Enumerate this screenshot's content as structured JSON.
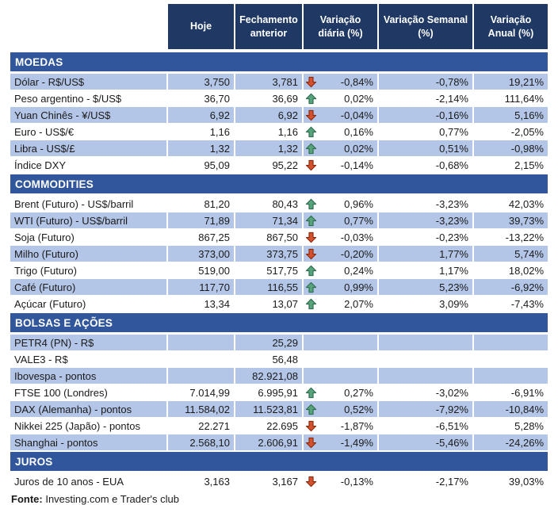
{
  "table": {
    "columns": [
      "Hoje",
      "Fechamento anterior",
      "Variação diária (%)",
      "Variação Semanal (%)",
      "Variação Anual (%)"
    ],
    "sections": [
      {
        "title": "MOEDAS",
        "rows": [
          {
            "label": "Dólar - R$/US$",
            "hoje": "3,750",
            "fechamento": "3,781",
            "arrow": "down",
            "diaria": "-0,84%",
            "semanal": "-0,78%",
            "anual": "19,21%"
          },
          {
            "label": "Peso argentino - $/US$",
            "hoje": "36,70",
            "fechamento": "36,69",
            "arrow": "up",
            "diaria": "0,02%",
            "semanal": "-2,14%",
            "anual": "111,64%"
          },
          {
            "label": "Yuan Chinês - ¥/US$",
            "hoje": "6,92",
            "fechamento": "6,92",
            "arrow": "down",
            "diaria": "-0,04%",
            "semanal": "-0,16%",
            "anual": "5,16%"
          },
          {
            "label": "Euro - US$/€",
            "hoje": "1,16",
            "fechamento": "1,16",
            "arrow": "up",
            "diaria": "0,16%",
            "semanal": "0,77%",
            "anual": "-2,05%"
          },
          {
            "label": "Libra - US$/£",
            "hoje": "1,32",
            "fechamento": "1,32",
            "arrow": "up",
            "diaria": "0,02%",
            "semanal": "0,51%",
            "anual": "-0,98%"
          },
          {
            "label": "Índice DXY",
            "hoje": "95,09",
            "fechamento": "95,22",
            "arrow": "down",
            "diaria": "-0,14%",
            "semanal": "-0,68%",
            "anual": "2,15%"
          }
        ]
      },
      {
        "title": "COMMODITIES",
        "rows": [
          {
            "label": "Brent (Futuro) - US$/barril",
            "hoje": "81,20",
            "fechamento": "80,43",
            "arrow": "up",
            "diaria": "0,96%",
            "semanal": "-3,23%",
            "anual": "42,03%"
          },
          {
            "label": "WTI (Futuro) - US$/barril",
            "hoje": "71,89",
            "fechamento": "71,34",
            "arrow": "up",
            "diaria": "0,77%",
            "semanal": "-3,23%",
            "anual": "39,73%"
          },
          {
            "label": "Soja (Futuro)",
            "hoje": "867,25",
            "fechamento": "867,50",
            "arrow": "down",
            "diaria": "-0,03%",
            "semanal": "-0,23%",
            "anual": "-13,22%"
          },
          {
            "label": "Milho (Futuro)",
            "hoje": "373,00",
            "fechamento": "373,75",
            "arrow": "down",
            "diaria": "-0,20%",
            "semanal": "1,77%",
            "anual": "5,74%"
          },
          {
            "label": "Trigo (Futuro)",
            "hoje": "519,00",
            "fechamento": "517,75",
            "arrow": "up",
            "diaria": "0,24%",
            "semanal": "1,17%",
            "anual": "18,02%"
          },
          {
            "label": "Café (Futuro)",
            "hoje": "117,70",
            "fechamento": "116,55",
            "arrow": "up",
            "diaria": "0,99%",
            "semanal": "5,23%",
            "anual": "-6,92%"
          },
          {
            "label": "Açúcar (Futuro)",
            "hoje": "13,34",
            "fechamento": "13,07",
            "arrow": "up",
            "diaria": "2,07%",
            "semanal": "3,09%",
            "anual": "-7,43%"
          }
        ]
      },
      {
        "title": "BOLSAS E AÇÕES",
        "rows": [
          {
            "label": "PETR4 (PN) - R$",
            "hoje": "",
            "fechamento": "25,29",
            "arrow": "",
            "diaria": "",
            "semanal": "",
            "anual": ""
          },
          {
            "label": "VALE3 - R$",
            "hoje": "",
            "fechamento": "56,48",
            "arrow": "",
            "diaria": "",
            "semanal": "",
            "anual": ""
          },
          {
            "label": "Ibovespa - pontos",
            "hoje": "",
            "fechamento": "82.921,08",
            "arrow": "",
            "diaria": "",
            "semanal": "",
            "anual": ""
          },
          {
            "label": "FTSE 100 (Londres)",
            "hoje": "7.014,99",
            "fechamento": "6.995,91",
            "arrow": "up",
            "diaria": "0,27%",
            "semanal": "-3,02%",
            "anual": "-6,91%"
          },
          {
            "label": "DAX (Alemanha) - pontos",
            "hoje": "11.584,02",
            "fechamento": "11.523,81",
            "arrow": "up",
            "diaria": "0,52%",
            "semanal": "-7,92%",
            "anual": "-10,84%"
          },
          {
            "label": "Nikkei 225 (Japão) - pontos",
            "hoje": "22.271",
            "fechamento": "22.695",
            "arrow": "down",
            "diaria": "-1,87%",
            "semanal": "-6,51%",
            "anual": "5,28%"
          },
          {
            "label": "Shanghai - pontos",
            "hoje": "2.568,10",
            "fechamento": "2.606,91",
            "arrow": "down",
            "diaria": "-1,49%",
            "semanal": "-5,46%",
            "anual": "-24,26%"
          }
        ]
      },
      {
        "title": "JUROS",
        "rows": [
          {
            "label": "Juros de 10 anos - EUA",
            "hoje": "3,163",
            "fechamento": "3,167",
            "arrow": "down",
            "diaria": "-0,13%",
            "semanal": "-2,17%",
            "anual": "39,03%"
          }
        ]
      }
    ]
  },
  "footer": {
    "label": "Fonte:",
    "text": " Investing.com e Trader's club"
  },
  "colors": {
    "header_bg": "#1F3864",
    "section_bg": "#31569B",
    "row_shaded": "#B4C6E7",
    "up_arrow_fill": "#57A47C",
    "up_arrow_stroke": "#2E6B4F",
    "down_arrow_fill": "#D4512F",
    "down_arrow_stroke": "#8A2B0D"
  }
}
